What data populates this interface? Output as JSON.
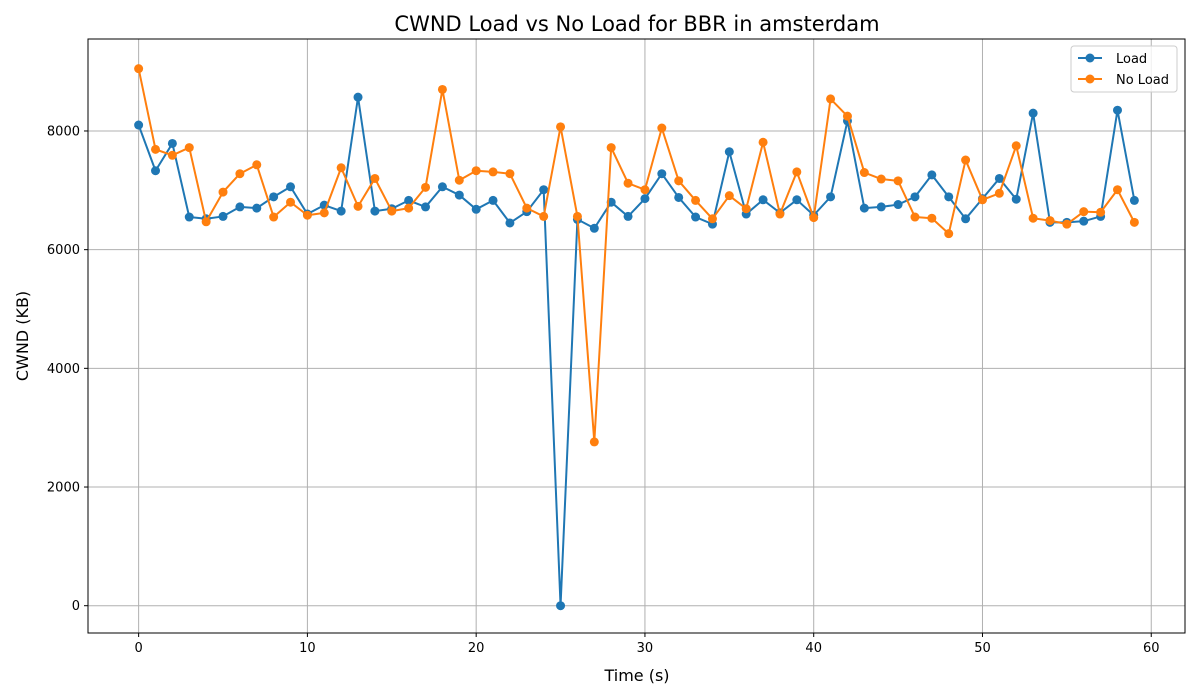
{
  "chart_data": {
    "type": "line",
    "title": "CWND Load vs No Load for BBR in amsterdam",
    "xlabel": "Time (s)",
    "ylabel": "CWND (KB)",
    "xlim": [
      -3,
      62
    ],
    "ylim": [
      -460,
      9550
    ],
    "xticks": [
      0,
      10,
      20,
      30,
      40,
      50,
      60
    ],
    "yticks": [
      0,
      2000,
      4000,
      6000,
      8000
    ],
    "grid": true,
    "legend_position": "top-right",
    "colors": {
      "Load": "#1f77b4",
      "No Load": "#ff7f0e"
    },
    "x": [
      0,
      1,
      2,
      3,
      4,
      5,
      6,
      7,
      8,
      9,
      10,
      11,
      12,
      13,
      14,
      15,
      16,
      17,
      18,
      19,
      20,
      21,
      22,
      23,
      24,
      25,
      26,
      27,
      28,
      29,
      30,
      31,
      32,
      33,
      34,
      35,
      36,
      37,
      38,
      39,
      40,
      41,
      42,
      43,
      44,
      45,
      46,
      47,
      48,
      49,
      50,
      51,
      52,
      53,
      54,
      55,
      56,
      57,
      58,
      59
    ],
    "series": [
      {
        "name": "Load",
        "values": [
          8100,
          7330,
          7790,
          6550,
          6520,
          6560,
          6720,
          6700,
          6890,
          7060,
          6600,
          6750,
          6650,
          8570,
          6650,
          6690,
          6830,
          6720,
          7060,
          6920,
          6680,
          6830,
          6450,
          6640,
          7010,
          0,
          6510,
          6360,
          6800,
          6560,
          6860,
          7280,
          6880,
          6550,
          6430,
          7650,
          6600,
          6840,
          6620,
          6840,
          6580,
          6890,
          8170,
          6700,
          6720,
          6760,
          6890,
          7260,
          6890,
          6520,
          6860,
          7200,
          6850,
          8300,
          6460,
          6460,
          6480,
          6560,
          8350,
          6830
        ]
      },
      {
        "name": "No Load",
        "values": [
          9050,
          7690,
          7590,
          7720,
          6470,
          6970,
          7280,
          7430,
          6550,
          6800,
          6580,
          6620,
          7380,
          6730,
          7200,
          6650,
          6700,
          7050,
          8700,
          7170,
          7330,
          7310,
          7280,
          6700,
          6560,
          8070,
          6560,
          2760,
          7720,
          7120,
          7010,
          8050,
          7160,
          6830,
          6520,
          6910,
          6690,
          7810,
          6600,
          7310,
          6540,
          8540,
          8250,
          7300,
          7190,
          7160,
          6550,
          6530,
          6270,
          7510,
          6840,
          6950,
          7750,
          6530,
          6490,
          6430,
          6640,
          6630,
          7010,
          6460
        ]
      }
    ]
  }
}
